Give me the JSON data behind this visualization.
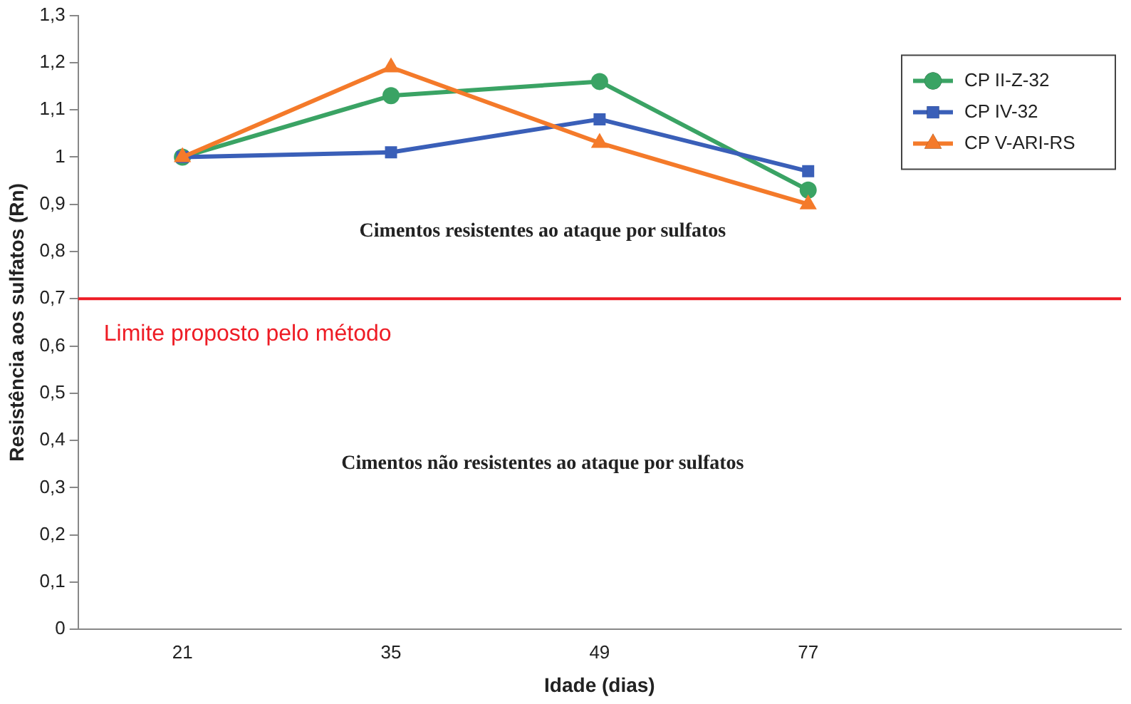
{
  "chart_data": {
    "type": "line",
    "xlabel": "Idade (dias)",
    "ylabel": "Resistência aos sulfatos (Rn)",
    "categories": [
      "21",
      "35",
      "49",
      "77",
      null
    ],
    "series": [
      {
        "name": "CP II-Z-32",
        "color": "#3aa364",
        "marker": "circle",
        "values": [
          1.0,
          1.13,
          1.16,
          0.93,
          null
        ]
      },
      {
        "name": "CP IV-32",
        "color": "#3a5fb8",
        "marker": "square",
        "values": [
          1.0,
          1.01,
          1.08,
          0.97,
          null
        ]
      },
      {
        "name": "CP V-ARI-RS",
        "color": "#f47a2a",
        "marker": "triangle",
        "values": [
          1.0,
          1.19,
          1.03,
          0.9,
          null
        ]
      }
    ],
    "ylim": [
      0,
      1.3
    ],
    "yticks": [
      0,
      {
        "value": 0.1,
        "label": "0,1"
      },
      {
        "value": 0.2,
        "label": "0,2"
      },
      {
        "value": 0.3,
        "label": "0,3"
      },
      {
        "value": 0.4,
        "label": "0,4"
      },
      {
        "value": 0.5,
        "label": "0,5"
      },
      {
        "value": 0.6,
        "label": "0,6"
      },
      {
        "value": 0.7,
        "label": "0,7"
      },
      {
        "value": 0.8,
        "label": "0,8"
      },
      {
        "value": 0.9,
        "label": "0,9"
      },
      1,
      {
        "value": 1.1,
        "label": "1,1"
      },
      {
        "value": 1.2,
        "label": "1,2"
      },
      {
        "value": 1.3,
        "label": "1,3"
      }
    ],
    "ref_lines": [
      {
        "axis": "y",
        "value": 0.7,
        "label": "Limite proposto pelo método",
        "color": "#ee1c25"
      }
    ],
    "annotations": [
      "Cimentos resistentes ao ataque por sulfatos",
      "Cimentos não resistentes ao ataque por sulfatos"
    ],
    "grid": false,
    "legend": "top right",
    "line_style": "solid"
  }
}
